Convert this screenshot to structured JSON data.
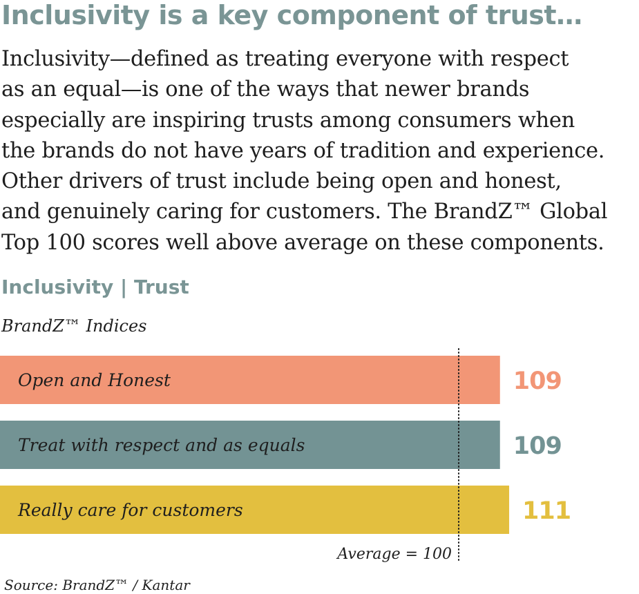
{
  "headline": "Inclusivity is a key component of trust…",
  "body_lines": [
    "Inclusivity—defined as treating everyone with respect",
    "as an equal—is one of the ways that newer brands",
    "especially are inspiring trusts among consumers when",
    "the brands do not have years of tradition and experience.",
    "Other drivers of trust include being open and honest,",
    "and genuinely caring for customers. The BrandZ™ Global",
    "Top 100 scores well above average on these components."
  ],
  "colors": {
    "headline": "#7a9595",
    "body_text": "#1e1e1e",
    "reference_line": "#1e1e1e",
    "bars": [
      "#f29676",
      "#739394",
      "#e3bf3f"
    ]
  },
  "chart_data": {
    "type": "bar",
    "orientation": "horizontal",
    "title": "Inclusivity | Trust",
    "subtitle": "BrandZ™ Indices",
    "categories": [
      "Open and Honest",
      "Treat with respect and as equals",
      "Really care for customers"
    ],
    "values": [
      109,
      109,
      111
    ],
    "value_labels": [
      "109",
      "109",
      "111"
    ],
    "reference_value": 100,
    "reference_label": "Average = 100",
    "grid": false,
    "legend": "none"
  },
  "source": "Source: BrandZ™ / Kantar"
}
